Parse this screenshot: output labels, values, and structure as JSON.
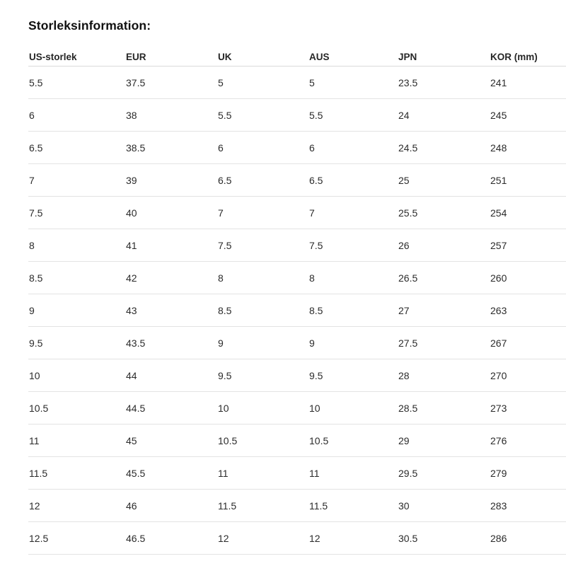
{
  "section": {
    "title": "Storleksinformation:"
  },
  "table": {
    "columns": [
      "US-storlek",
      "EUR",
      "UK",
      "AUS",
      "JPN",
      "KOR (mm)"
    ],
    "rows": [
      [
        "5.5",
        "37.5",
        "5",
        "5",
        "23.5",
        "241"
      ],
      [
        "6",
        "38",
        "5.5",
        "5.5",
        "24",
        "245"
      ],
      [
        "6.5",
        "38.5",
        "6",
        "6",
        "24.5",
        "248"
      ],
      [
        "7",
        "39",
        "6.5",
        "6.5",
        "25",
        "251"
      ],
      [
        "7.5",
        "40",
        "7",
        "7",
        "25.5",
        "254"
      ],
      [
        "8",
        "41",
        "7.5",
        "7.5",
        "26",
        "257"
      ],
      [
        "8.5",
        "42",
        "8",
        "8",
        "26.5",
        "260"
      ],
      [
        "9",
        "43",
        "8.5",
        "8.5",
        "27",
        "263"
      ],
      [
        "9.5",
        "43.5",
        "9",
        "9",
        "27.5",
        "267"
      ],
      [
        "10",
        "44",
        "9.5",
        "9.5",
        "28",
        "270"
      ],
      [
        "10.5",
        "44.5",
        "10",
        "10",
        "28.5",
        "273"
      ],
      [
        "11",
        "45",
        "10.5",
        "10.5",
        "29",
        "276"
      ],
      [
        "11.5",
        "45.5",
        "11",
        "11",
        "29.5",
        "279"
      ],
      [
        "12",
        "46",
        "11.5",
        "11.5",
        "30",
        "283"
      ],
      [
        "12.5",
        "46.5",
        "12",
        "12",
        "30.5",
        "286"
      ]
    ]
  },
  "colors": {
    "background": "#ffffff",
    "title_text": "#111111",
    "body_text": "#2b2b2b",
    "header_border": "#d9d9d9",
    "row_border": "#e3e3e3"
  }
}
